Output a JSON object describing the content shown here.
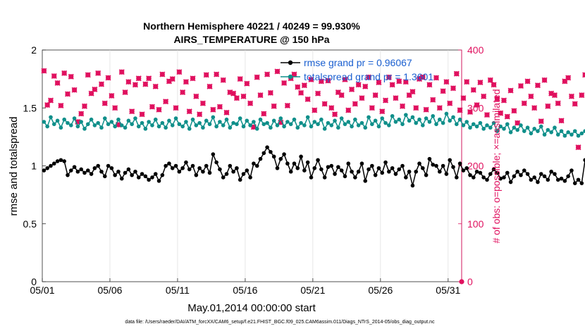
{
  "chart_data": {
    "type": "line",
    "title_line1": "Northern Hemisphere 40221 / 40249 = 99.930%",
    "title_line2": "AIRS_TEMPERATURE @ 150 hPa",
    "xlabel": "May.01,2014 00:00:00 start",
    "ylabel_left": "rmse and totalspread",
    "ylabel_right": "# of obs: o=possible; ×=assimilated",
    "footer": "data file: /Users/raeder/DAI/ATM_forcXX/CAM6_setup/f.e21.FHIST_BGC.f09_025.CAM6assim.011/Diags_NTrS_2014-05/obs_diag_output.nc",
    "x_ticks": [
      {
        "day": 0,
        "label": "05/01"
      },
      {
        "day": 5,
        "label": "05/06"
      },
      {
        "day": 10,
        "label": "05/11"
      },
      {
        "day": 15,
        "label": "05/16"
      },
      {
        "day": 20,
        "label": "05/21"
      },
      {
        "day": 25,
        "label": "05/26"
      },
      {
        "day": 30,
        "label": "05/31"
      }
    ],
    "xlim": [
      0,
      31
    ],
    "ylim_left": [
      0,
      2
    ],
    "yticks_left": [
      "0",
      "0.5",
      "1",
      "1.5",
      "2"
    ],
    "ylim_right": [
      0,
      400
    ],
    "yticks_right": [
      "0",
      "100",
      "200",
      "300",
      "400"
    ],
    "legend": [
      {
        "label": "rmse grand pr = 0.96067",
        "color": "#000000"
      },
      {
        "label": "totalspread grand pr = 1.3601",
        "color": "#0f8f8a"
      }
    ],
    "series": [
      {
        "name": "rmse",
        "color": "#000000",
        "axis": "left",
        "start_day": 0.125,
        "step_days": 0.25,
        "values": [
          0.96,
          0.98,
          1.0,
          1.02,
          1.04,
          1.05,
          1.04,
          0.92,
          0.96,
          0.99,
          0.95,
          0.97,
          0.94,
          0.96,
          0.93,
          0.98,
          1.0,
          0.95,
          0.91,
          1.0,
          0.98,
          0.92,
          0.95,
          0.89,
          0.94,
          0.97,
          0.92,
          0.95,
          0.9,
          0.93,
          0.91,
          0.88,
          0.9,
          0.93,
          0.87,
          0.92,
          1.0,
          1.02,
          0.98,
          1.0,
          0.95,
          0.98,
          1.03,
          0.97,
          1.0,
          0.92,
          0.98,
          0.95,
          1.0,
          0.94,
          1.1,
          1.03,
          0.97,
          0.9,
          0.93,
          1.0,
          0.95,
          0.98,
          0.88,
          0.93,
          0.96,
          0.9,
          1.02,
          1.0,
          1.06,
          1.11,
          1.16,
          1.12,
          1.08,
          0.98,
          1.06,
          1.1,
          1.02,
          0.95,
          1.02,
          0.98,
          1.08,
          0.96,
          1.03,
          0.9,
          0.98,
          1.05,
          0.97,
          0.9,
          0.99,
          1.0,
          0.93,
          0.99,
          0.96,
          0.91,
          1.02,
          0.95,
          0.9,
          0.95,
          1.02,
          0.87,
          0.97,
          1.0,
          0.92,
          0.98,
          0.94,
          1.03,
          0.95,
          0.98,
          0.93,
          0.97,
          1.0,
          0.9,
          0.95,
          0.83,
          0.95,
          1.02,
          0.98,
          0.92,
          1.06,
          1.01,
          1.0,
          0.95,
          1.0,
          0.93,
          1.05,
          0.99,
          0.9,
          1.02,
          0.96,
          0.98,
          0.92,
          0.9,
          0.95,
          0.94,
          0.9,
          0.88,
          0.93,
          0.97,
          0.94,
          0.89,
          0.9,
          0.94,
          0.86,
          0.91,
          0.95,
          0.92,
          0.96,
          0.93,
          0.88,
          0.9,
          0.86,
          0.93,
          0.91,
          0.88,
          0.95,
          0.93,
          0.88,
          0.89,
          0.87,
          0.91,
          0.96,
          0.85,
          0.88,
          0.85,
          1.05,
          0.93,
          0.87,
          0.91,
          0.85,
          0.87,
          0.82,
          0.9,
          0.84,
          0.82,
          1.0,
          0.84,
          0.89,
          0.9
        ]
      },
      {
        "name": "totalspread",
        "color": "#0f8f8a",
        "axis": "left",
        "start_day": 0.125,
        "step_days": 0.25,
        "values": [
          1.38,
          1.34,
          1.42,
          1.36,
          1.39,
          1.33,
          1.4,
          1.37,
          1.35,
          1.41,
          1.34,
          1.38,
          1.32,
          1.36,
          1.4,
          1.35,
          1.37,
          1.33,
          1.41,
          1.36,
          1.38,
          1.34,
          1.4,
          1.35,
          1.33,
          1.39,
          1.36,
          1.41,
          1.34,
          1.37,
          1.32,
          1.38,
          1.35,
          1.4,
          1.34,
          1.37,
          1.33,
          1.39,
          1.35,
          1.41,
          1.36,
          1.34,
          1.38,
          1.32,
          1.4,
          1.35,
          1.37,
          1.33,
          1.39,
          1.36,
          1.42,
          1.34,
          1.38,
          1.35,
          1.4,
          1.33,
          1.37,
          1.36,
          1.41,
          1.34,
          1.39,
          1.35,
          1.38,
          1.32,
          1.4,
          1.36,
          1.37,
          1.33,
          1.39,
          1.35,
          1.41,
          1.34,
          1.38,
          1.36,
          1.4,
          1.33,
          1.37,
          1.35,
          1.42,
          1.34,
          1.38,
          1.36,
          1.4,
          1.32,
          1.37,
          1.35,
          1.39,
          1.33,
          1.41,
          1.36,
          1.38,
          1.34,
          1.4,
          1.35,
          1.37,
          1.33,
          1.42,
          1.36,
          1.39,
          1.34,
          1.41,
          1.37,
          1.35,
          1.43,
          1.38,
          1.4,
          1.36,
          1.44,
          1.39,
          1.42,
          1.37,
          1.4,
          1.35,
          1.41,
          1.38,
          1.43,
          1.36,
          1.4,
          1.37,
          1.45,
          1.39,
          1.42,
          1.36,
          1.4,
          1.35,
          1.38,
          1.33,
          1.36,
          1.34,
          1.37,
          1.32,
          1.35,
          1.33,
          1.37,
          1.3,
          1.34,
          1.32,
          1.36,
          1.29,
          1.33,
          1.31,
          1.35,
          1.3,
          1.33,
          1.28,
          1.32,
          1.3,
          1.34,
          1.27,
          1.31,
          1.29,
          1.33,
          1.27,
          1.3,
          1.26,
          1.29,
          1.27,
          1.3,
          1.26,
          1.28,
          1.3,
          1.27,
          1.32,
          1.28,
          1.31,
          1.35,
          1.3,
          1.33,
          1.37,
          1.31,
          1.34,
          1.32,
          1.36,
          1.33,
          1.35,
          1.31,
          1.34,
          1.32
        ]
      }
    ],
    "obs_possible": {
      "color": "#e0115f",
      "axis": "right",
      "start_day": 0.125,
      "step_days": 0.25,
      "values": [
        364,
        305,
        313,
        355,
        343,
        304,
        360,
        324,
        354,
        331,
        276,
        290,
        303,
        357,
        325,
        332,
        360,
        341,
        308,
        352,
        321,
        300,
        271,
        362,
        327,
        345,
        294,
        340,
        351,
        289,
        341,
        351,
        302,
        337,
        297,
        358,
        311,
        346,
        350,
        300,
        362,
        327,
        345,
        294,
        351,
        320,
        289,
        308,
        357,
        337,
        297,
        358,
        302,
        348,
        292,
        327,
        325,
        317,
        350,
        320,
        342,
        308,
        267,
        353,
        322,
        290,
        358,
        326,
        303,
        363,
        275,
        343,
        304,
        351,
        358,
        336,
        326,
        339,
        315,
        349,
        296,
        325,
        346,
        307,
        347,
        300,
        289,
        327,
        322,
        349,
        296,
        332,
        307,
        340,
        317,
        337,
        353,
        300,
        322,
        344,
        294,
        313,
        353,
        340,
        317,
        346,
        303,
        345,
        322,
        328,
        300,
        350,
        353,
        297,
        340,
        314,
        352,
        300,
        329,
        345,
        308,
        334,
        359,
        296,
        317,
        345,
        293,
        331,
        305,
        344,
        320,
        288,
        348,
        340,
        316,
        291,
        313,
        285,
        330,
        295,
        274,
        338,
        308,
        346,
        320,
        300,
        339,
        277,
        348,
        303,
        325,
        322,
        308,
        278,
        346,
        352,
        320,
        307,
        232,
        322,
        357,
        290,
        301,
        358,
        321,
        340,
        354,
        313,
        342,
        282,
        362,
        342,
        342
      ]
    },
    "obs_assimilated": {
      "color": "#e0115f",
      "axis": "right",
      "start_day": 0.125,
      "step_days": 0.25,
      "values": [
        364,
        305,
        313,
        355,
        343,
        304,
        360,
        324,
        354,
        331,
        276,
        290,
        303,
        357,
        325,
        332,
        360,
        341,
        308,
        352,
        321,
        300,
        271,
        362,
        327,
        345,
        294,
        340,
        351,
        289,
        341,
        351,
        302,
        337,
        297,
        358,
        311,
        346,
        350,
        300,
        362,
        327,
        345,
        294,
        351,
        320,
        289,
        308,
        357,
        337,
        297,
        358,
        302,
        348,
        292,
        327,
        325,
        317,
        350,
        320,
        342,
        308,
        267,
        353,
        322,
        290,
        358,
        326,
        303,
        363,
        275,
        343,
        304,
        351,
        358,
        336,
        326,
        339,
        315,
        349,
        296,
        325,
        346,
        307,
        347,
        300,
        289,
        327,
        322,
        349,
        296,
        332,
        307,
        340,
        317,
        337,
        353,
        300,
        322,
        344,
        294,
        313,
        353,
        340,
        317,
        346,
        303,
        345,
        322,
        328,
        300,
        350,
        353,
        297,
        340,
        314,
        352,
        300,
        329,
        345,
        308,
        334,
        359,
        296,
        317,
        345,
        293,
        331,
        305,
        344,
        320,
        288,
        348,
        340,
        316,
        291,
        313,
        285,
        330,
        295,
        274,
        338,
        308,
        346,
        320,
        300,
        339,
        277,
        348,
        303,
        325,
        322,
        308,
        278,
        346,
        352,
        320,
        307,
        232,
        322,
        357,
        290,
        301,
        358,
        321,
        340,
        354,
        313,
        342,
        282,
        362,
        342,
        342
      ]
    },
    "extra_points": [
      {
        "day": 31.0,
        "value": 0,
        "axis": "right",
        "color": "#e0115f"
      }
    ]
  }
}
